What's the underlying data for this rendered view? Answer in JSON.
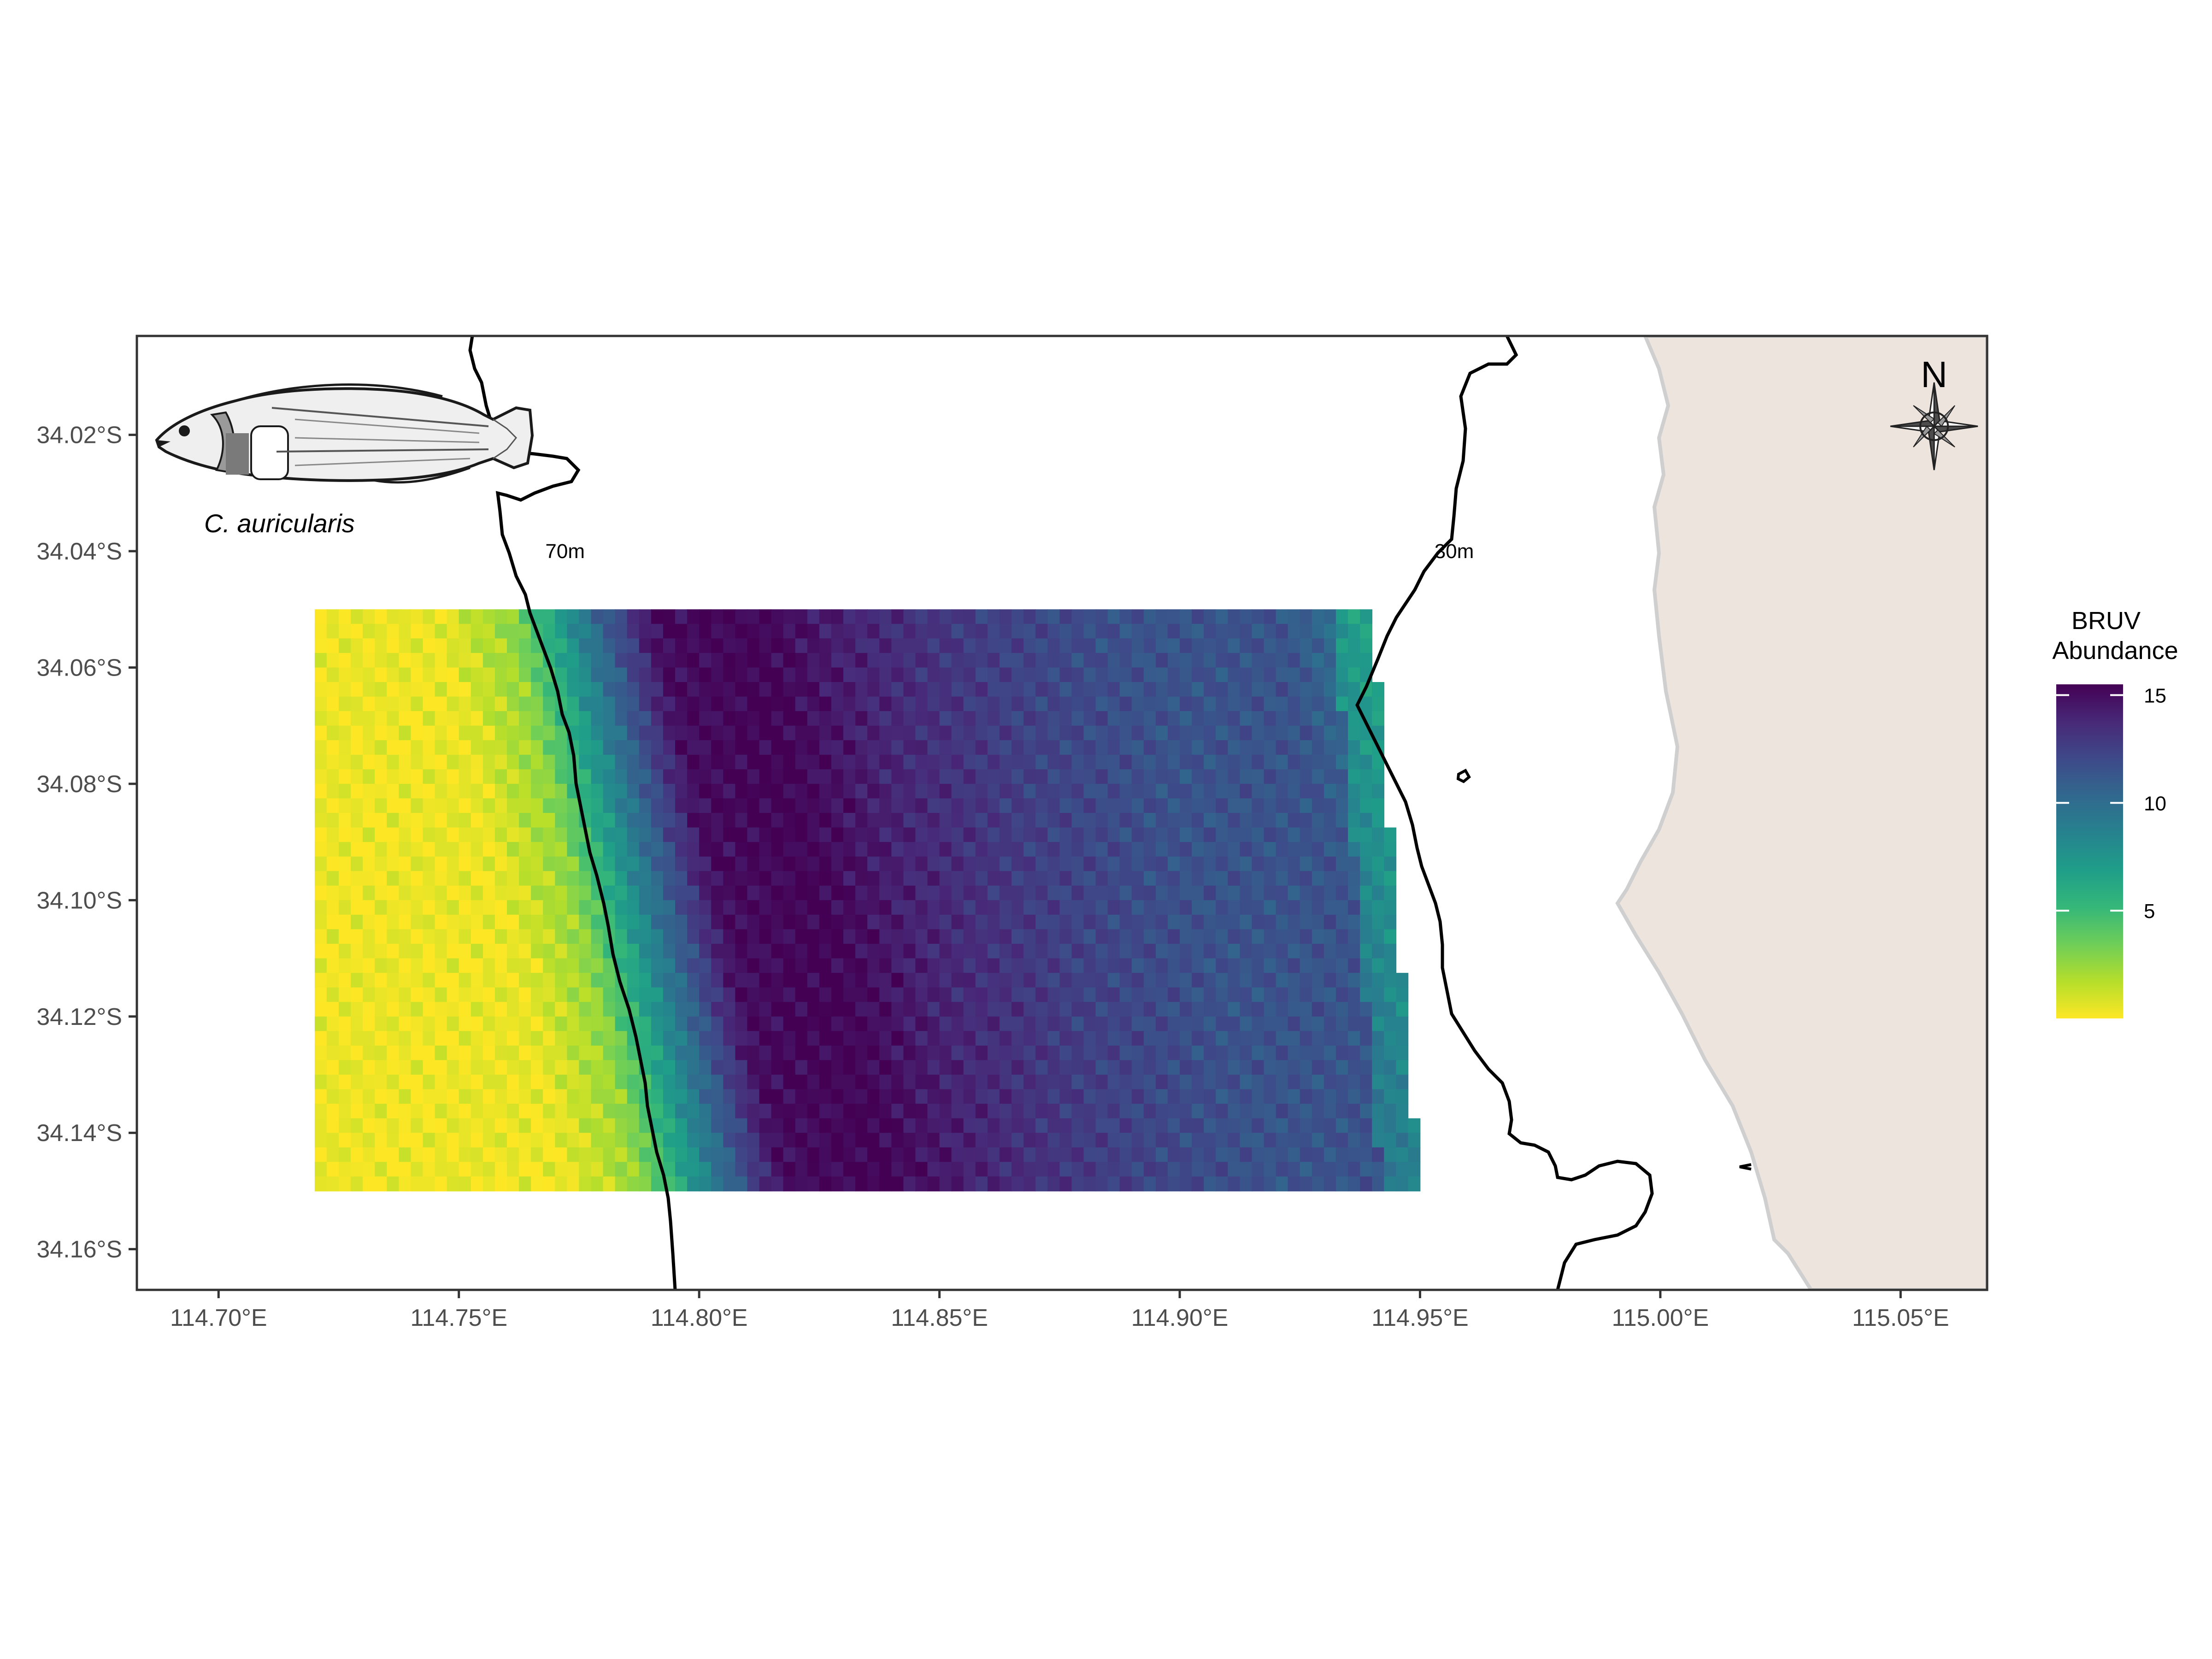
{
  "chart_data": {
    "type": "heatmap",
    "legend": {
      "title_line1": "BRUV",
      "title_line2": "Abundance",
      "ticks": [
        {
          "value": 15,
          "label": "15"
        },
        {
          "value": 10,
          "label": "10"
        },
        {
          "value": 5,
          "label": "5"
        }
      ],
      "range": [
        0,
        15.5
      ],
      "placement": "right",
      "colormap": [
        "#FDE725",
        "#B5DE2B",
        "#6ECE58",
        "#35B779",
        "#1F9E89",
        "#26828E",
        "#31688E",
        "#3E4989",
        "#482878",
        "#440154"
      ]
    },
    "x_axis": {
      "ticks": [
        {
          "value": 114.7,
          "label": "114.70°E"
        },
        {
          "value": 114.75,
          "label": "114.75°E"
        },
        {
          "value": 114.8,
          "label": "114.80°E"
        },
        {
          "value": 114.85,
          "label": "114.85°E"
        },
        {
          "value": 114.9,
          "label": "114.90°E"
        },
        {
          "value": 114.95,
          "label": "114.95°E"
        },
        {
          "value": 115.0,
          "label": "115.00°E"
        },
        {
          "value": 115.05,
          "label": "115.05°E"
        }
      ],
      "range": [
        114.683,
        115.068
      ]
    },
    "y_axis": {
      "ticks": [
        {
          "value": -34.02,
          "label": "34.02°S"
        },
        {
          "value": -34.04,
          "label": "34.04°S"
        },
        {
          "value": -34.06,
          "label": "34.06°S"
        },
        {
          "value": -34.08,
          "label": "34.08°S"
        },
        {
          "value": -34.1,
          "label": "34.10°S"
        },
        {
          "value": -34.12,
          "label": "34.12°S"
        },
        {
          "value": -34.14,
          "label": "34.14°S"
        },
        {
          "value": -34.16,
          "label": "34.16°S"
        }
      ],
      "range": [
        -34.167,
        -34.003
      ]
    },
    "grid": false,
    "raster_extent": {
      "lon": [
        114.72,
        114.95
      ],
      "lat": [
        -34.15,
        -34.05
      ]
    },
    "abundance_profile_by_lon": [
      {
        "lon": 114.72,
        "value": 0.3
      },
      {
        "lon": 114.745,
        "value": 0.4
      },
      {
        "lon": 114.76,
        "value": 2.5
      },
      {
        "lon": 114.775,
        "value": 9.0
      },
      {
        "lon": 114.79,
        "value": 15.0
      },
      {
        "lon": 114.81,
        "value": 15.5
      },
      {
        "lon": 114.83,
        "value": 14.0
      },
      {
        "lon": 114.86,
        "value": 12.5
      },
      {
        "lon": 114.89,
        "value": 11.5
      },
      {
        "lon": 114.92,
        "value": 11.5
      },
      {
        "lon": 114.935,
        "value": 9.5
      },
      {
        "lon": 114.95,
        "value": 8.0
      }
    ],
    "contours": [
      {
        "label": "70m",
        "label_lon": 114.768,
        "label_lat": -34.04
      },
      {
        "label": "30m",
        "label_lon": 114.953,
        "label_lat": -34.04
      }
    ],
    "species_label": "C. auricularis",
    "compass_label": "N"
  },
  "colors": {
    "land": "#EDE4DE",
    "land_border": "#CFCFCF",
    "contour": "#000000",
    "panel_border": "#333333"
  },
  "icons": [
    "fish-illustration-icon",
    "compass-rose-icon"
  ]
}
